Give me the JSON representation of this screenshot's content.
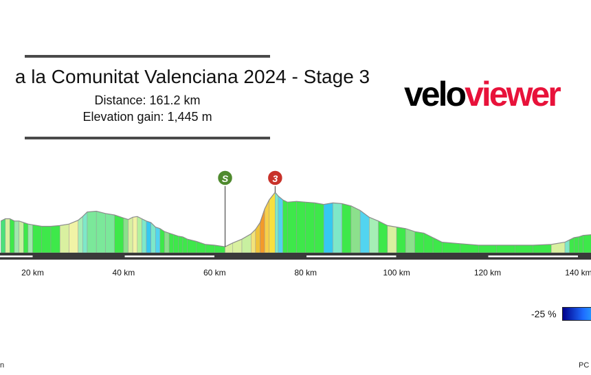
{
  "header": {
    "title": "a la Comunitat Valenciana 2024 - Stage 3",
    "distance": "Distance: 161.2 km",
    "elevation_gain": "Elevation gain: 1,445 m"
  },
  "logo": {
    "part1": "velo",
    "part2": "viewer"
  },
  "markers": [
    {
      "label": "S",
      "km": 62.3,
      "color": "#4f8a2e"
    },
    {
      "label": "3",
      "km": 73.3,
      "color": "#c8322a"
    }
  ],
  "legend": {
    "label": "-25 %"
  },
  "footer": {
    "left": "n",
    "right": "PC"
  },
  "chart_data": {
    "type": "area",
    "title": "a la Comunitat Valenciana 2024 - Stage 3",
    "xlabel": "",
    "ylabel": "",
    "x_ticks": [
      "20 km",
      "40 km",
      "60 km",
      "80 km",
      "100 km",
      "120 km",
      "140 km"
    ],
    "x_tick_values": [
      20,
      40,
      60,
      80,
      100,
      120,
      140
    ],
    "xlim": [
      13,
      143
    ],
    "profile_km": [
      13,
      14,
      15,
      16,
      17,
      18,
      19,
      20,
      22,
      24,
      26,
      28,
      30,
      31,
      32,
      34,
      36,
      38,
      40,
      41,
      42,
      43,
      44,
      45,
      46,
      47,
      48,
      49,
      50,
      51,
      52,
      53,
      54,
      56,
      58,
      60,
      62.3,
      64,
      66,
      68,
      69,
      70,
      71,
      72,
      73.3,
      74,
      75,
      76,
      78,
      80,
      82,
      84,
      86,
      88,
      90,
      92,
      94,
      96,
      98,
      100,
      102,
      104,
      106,
      108,
      110,
      114,
      118,
      122,
      126,
      130,
      134,
      137,
      138,
      139,
      140,
      141,
      143
    ],
    "profile_rel_height": [
      42,
      45,
      45,
      42,
      42,
      40,
      38,
      37,
      35,
      35,
      36,
      38,
      43,
      48,
      54,
      55,
      52,
      50,
      46,
      44,
      47,
      48,
      45,
      42,
      40,
      34,
      32,
      28,
      26,
      24,
      22,
      21,
      18,
      15,
      11,
      10,
      8,
      13,
      18,
      25,
      31,
      40,
      58,
      70,
      80,
      75,
      70,
      67,
      68,
      67,
      66,
      64,
      66,
      65,
      62,
      56,
      47,
      42,
      36,
      34,
      32,
      28,
      26,
      20,
      14,
      12,
      10,
      10,
      10,
      10,
      11,
      14,
      17,
      20,
      21,
      23,
      24
    ],
    "profile_colors": [
      "#4be07a",
      "#d9f0a0",
      "#3ee84a",
      "#a0e8ad",
      "#c8f0a0",
      "#3ee84a",
      "#a0e8ad",
      "#3ee84a",
      "#3ee84a",
      "#3ee84a",
      "#d9f0a0",
      "#f1f3a6",
      "#a6eeb6",
      "#7ee8c8",
      "#7be89a",
      "#7be89a",
      "#7be89a",
      "#3ee84a",
      "#8ce08c",
      "#d9f0a0",
      "#f1f3a6",
      "#b5f19d",
      "#7ee8c8",
      "#36c8f0",
      "#7ee8c8",
      "#52d4f0",
      "#3ee84a",
      "#8ce08c",
      "#3ee84a",
      "#3ee84a",
      "#3ee84a",
      "#3ee84a",
      "#3ee84a",
      "#3ee84a",
      "#3ee84a",
      "#3ee84a",
      "#d9f0a0",
      "#d9f0a0",
      "#c8f0a0",
      "#f3e37a",
      "#f0c43a",
      "#f39a2a",
      "#f7d04a",
      "#f7e040",
      "#7ee8c8",
      "#52d4f0",
      "#3ee84a",
      "#3ee84a",
      "#3ee84a",
      "#3ee84a",
      "#3ee84a",
      "#36c8f0",
      "#7ee8c8",
      "#3ee84a",
      "#8ce08c",
      "#52d4f0",
      "#a6eeb6",
      "#3ee84a",
      "#d9f0a0",
      "#3ee84a",
      "#8ce08c",
      "#3ee84a",
      "#3ee84a",
      "#3ee84a",
      "#3ee84a",
      "#3ee84a",
      "#3ee84a",
      "#3ee84a",
      "#3ee84a",
      "#3ee84a",
      "#d9f0a0",
      "#7ee8c8",
      "#3ee84a",
      "#3ee84a",
      "#3ee84a",
      "#3ee84a"
    ],
    "grid": false,
    "legend_position": "bottom-right"
  }
}
